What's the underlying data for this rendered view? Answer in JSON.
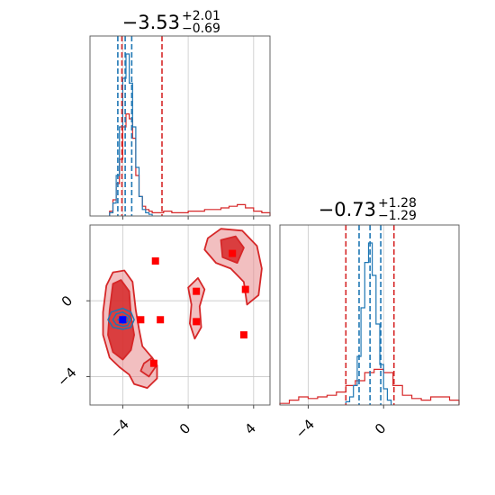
{
  "chart_data": {
    "type": "corner",
    "colors": {
      "a": "#1f77b4",
      "b": "#d62728",
      "b_fill": "#e88a8c",
      "marker_red": "#ff0000",
      "marker_blue": "#0000ff"
    },
    "grid": true,
    "params": [
      {
        "range": [
          -6.0,
          5.0
        ],
        "ticks": [
          -4,
          0,
          4
        ],
        "tick_labels": [
          "−4",
          "0",
          "4"
        ]
      },
      {
        "range": [
          -5.5,
          4.0
        ],
        "ticks": [
          -4,
          0
        ],
        "tick_labels": [
          "−4",
          "0"
        ]
      }
    ],
    "diag": [
      {
        "title_main": "−3.53",
        "title_sup": "+2.01",
        "title_sub": "−0.69",
        "vlines_a": [
          -4.3,
          -3.85,
          -3.45
        ],
        "vlines_b": [
          -4.05,
          -1.6
        ],
        "hist_a": {
          "edges": [
            -4.8,
            -4.6,
            -4.4,
            -4.2,
            -4.0,
            -3.8,
            -3.6,
            -3.4,
            -3.2,
            -3.0,
            -2.8,
            -2.6,
            -2.4,
            -2.2
          ],
          "counts": [
            0.02,
            0.08,
            0.25,
            0.55,
            0.85,
            1.0,
            0.82,
            0.55,
            0.3,
            0.12,
            0.04,
            0.02,
            0.01
          ]
        },
        "hist_b": {
          "edges": [
            -4.8,
            -4.6,
            -4.4,
            -4.2,
            -4.0,
            -3.8,
            -3.6,
            -3.4,
            -3.2,
            -3.0,
            -2.8,
            -2.6,
            -2.4,
            -2.2,
            -2.0,
            -1.5,
            -1.0,
            -0.5,
            0.0,
            0.5,
            1.0,
            1.5,
            2.0,
            2.5,
            3.0,
            3.5,
            4.0,
            4.5,
            5.0
          ],
          "counts": [
            0.03,
            0.1,
            0.2,
            0.35,
            0.55,
            0.63,
            0.6,
            0.48,
            0.25,
            0.12,
            0.06,
            0.04,
            0.03,
            0.02,
            0.02,
            0.03,
            0.02,
            0.02,
            0.03,
            0.03,
            0.04,
            0.04,
            0.05,
            0.06,
            0.07,
            0.05,
            0.03,
            0.02
          ]
        }
      },
      {
        "title_main": "−0.73",
        "title_sup": "+1.28",
        "title_sub": "−1.29",
        "vlines_a": [
          -1.3,
          -0.72,
          -0.15
        ],
        "vlines_b": [
          -2.0,
          0.55
        ],
        "hist_a": {
          "edges": [
            -2.0,
            -1.8,
            -1.6,
            -1.4,
            -1.2,
            -1.0,
            -0.8,
            -0.6,
            -0.4,
            -0.2,
            0.0,
            0.2,
            0.4
          ],
          "counts": [
            0.02,
            0.05,
            0.12,
            0.3,
            0.6,
            0.88,
            1.0,
            0.8,
            0.5,
            0.25,
            0.1,
            0.03
          ]
        },
        "hist_b": {
          "edges": [
            -5.5,
            -5.0,
            -4.5,
            -4.0,
            -3.5,
            -3.0,
            -2.5,
            -2.0,
            -1.5,
            -1.0,
            -0.5,
            0.0,
            0.5,
            1.0,
            1.5,
            2.0,
            2.5,
            3.0,
            3.5,
            4.0
          ],
          "counts": [
            0.01,
            0.03,
            0.05,
            0.04,
            0.05,
            0.06,
            0.08,
            0.12,
            0.15,
            0.2,
            0.22,
            0.2,
            0.12,
            0.06,
            0.04,
            0.03,
            0.05,
            0.05,
            0.03
          ]
        }
      }
    ],
    "scatter_2d": {
      "contour_b": [
        [
          [
            -5.2,
            -0.6
          ],
          [
            -5.0,
            0.8
          ],
          [
            -4.6,
            1.5
          ],
          [
            -3.9,
            1.6
          ],
          [
            -3.4,
            1.0
          ],
          [
            -3.2,
            -0.5
          ],
          [
            -3.0,
            -1.5
          ],
          [
            -2.8,
            -2.4
          ],
          [
            -2.2,
            -3.0
          ],
          [
            -1.9,
            -3.4
          ],
          [
            -1.9,
            -4.1
          ],
          [
            -2.5,
            -4.6
          ],
          [
            -3.3,
            -4.4
          ],
          [
            -3.6,
            -3.9
          ],
          [
            -4.2,
            -3.5
          ],
          [
            -4.8,
            -3.0
          ],
          [
            -5.2,
            -1.8
          ]
        ],
        [
          [
            -4.8,
            -0.5
          ],
          [
            -4.6,
            0.9
          ],
          [
            -4.1,
            1.1
          ],
          [
            -3.6,
            0.5
          ],
          [
            -3.5,
            -0.8
          ],
          [
            -3.3,
            -1.8
          ],
          [
            -3.5,
            -2.6
          ],
          [
            -4.0,
            -3.1
          ],
          [
            -4.6,
            -2.7
          ],
          [
            -4.9,
            -1.8
          ]
        ],
        [
          [
            -2.7,
            -3.3
          ],
          [
            -2.2,
            -3.0
          ],
          [
            -2.0,
            -3.5
          ],
          [
            -2.4,
            -4.0
          ],
          [
            -2.9,
            -3.7
          ]
        ],
        [
          [
            0.0,
            0.7
          ],
          [
            0.6,
            1.2
          ],
          [
            1.0,
            0.6
          ],
          [
            0.7,
            -0.3
          ],
          [
            0.8,
            -1.4
          ],
          [
            0.4,
            -2.0
          ],
          [
            0.1,
            -1.2
          ],
          [
            0.2,
            -0.2
          ]
        ],
        [
          [
            1.2,
            3.3
          ],
          [
            2.0,
            3.8
          ],
          [
            3.3,
            3.7
          ],
          [
            4.2,
            2.9
          ],
          [
            4.5,
            1.7
          ],
          [
            4.3,
            0.3
          ],
          [
            3.6,
            -0.2
          ],
          [
            3.4,
            1.0
          ],
          [
            2.6,
            1.7
          ],
          [
            1.7,
            2.0
          ],
          [
            1.0,
            2.7
          ]
        ],
        [
          [
            2.0,
            3.2
          ],
          [
            2.9,
            3.4
          ],
          [
            3.4,
            2.8
          ],
          [
            3.0,
            2.0
          ],
          [
            2.1,
            2.3
          ]
        ]
      ],
      "contour_a": [
        [
          [
            -4.9,
            -1.0
          ],
          [
            -4.7,
            -0.6
          ],
          [
            -4.0,
            -0.4
          ],
          [
            -3.5,
            -0.6
          ],
          [
            -3.3,
            -1.0
          ],
          [
            -3.5,
            -1.4
          ],
          [
            -4.0,
            -1.5
          ],
          [
            -4.6,
            -1.4
          ]
        ],
        [
          [
            -4.6,
            -1.0
          ],
          [
            -4.4,
            -0.7
          ],
          [
            -4.0,
            -0.6
          ],
          [
            -3.6,
            -0.8
          ],
          [
            -3.5,
            -1.0
          ],
          [
            -3.7,
            -1.3
          ],
          [
            -4.0,
            -1.35
          ],
          [
            -4.4,
            -1.25
          ]
        ],
        [
          [
            -4.3,
            -1.0
          ],
          [
            -4.0,
            -0.8
          ],
          [
            -3.7,
            -0.9
          ],
          [
            -3.7,
            -1.1
          ],
          [
            -4.0,
            -1.2
          ]
        ]
      ],
      "samples_b": [
        [
          -2.0,
          2.1
        ],
        [
          -2.9,
          -1.0
        ],
        [
          -1.7,
          -1.0
        ],
        [
          0.5,
          0.5
        ],
        [
          0.5,
          -1.1
        ],
        [
          3.5,
          0.6
        ],
        [
          2.7,
          2.5
        ],
        [
          3.4,
          -1.8
        ],
        [
          -2.1,
          -3.3
        ]
      ],
      "samples_a": [
        [
          -4.0,
          -1.0
        ]
      ]
    }
  }
}
